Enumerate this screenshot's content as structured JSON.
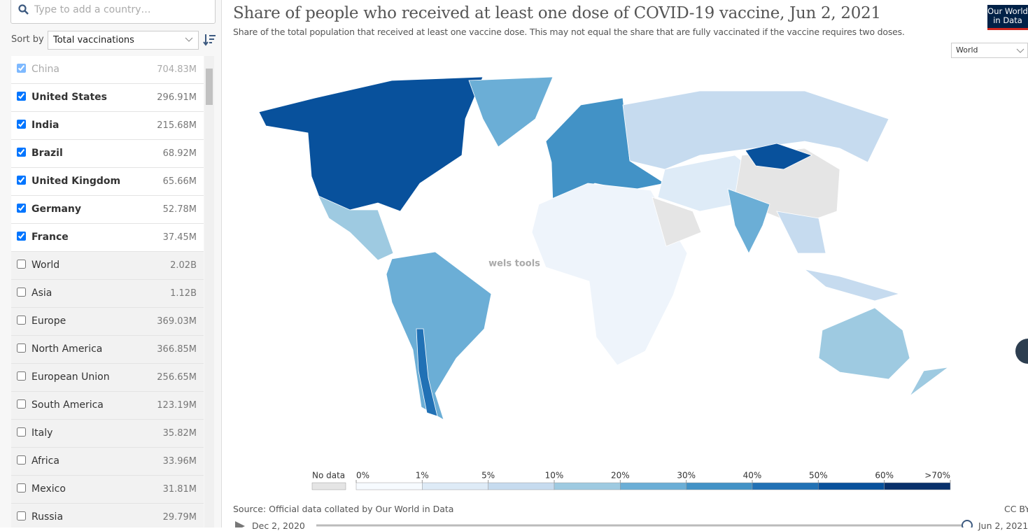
{
  "search": {
    "placeholder": "Type to add a country…"
  },
  "sort": {
    "label": "Sort by",
    "value": "Total vaccinations"
  },
  "list": [
    {
      "name": "China",
      "value": "704.83M",
      "checked": true,
      "disabled": true
    },
    {
      "name": "United States",
      "value": "296.91M",
      "checked": true
    },
    {
      "name": "India",
      "value": "215.68M",
      "checked": true
    },
    {
      "name": "Brazil",
      "value": "68.92M",
      "checked": true
    },
    {
      "name": "United Kingdom",
      "value": "65.66M",
      "checked": true
    },
    {
      "name": "Germany",
      "value": "52.78M",
      "checked": true
    },
    {
      "name": "France",
      "value": "37.45M",
      "checked": true
    },
    {
      "name": "World",
      "value": "2.02B",
      "checked": false
    },
    {
      "name": "Asia",
      "value": "1.12B",
      "checked": false
    },
    {
      "name": "Europe",
      "value": "369.03M",
      "checked": false
    },
    {
      "name": "North America",
      "value": "366.85M",
      "checked": false
    },
    {
      "name": "European Union",
      "value": "256.65M",
      "checked": false
    },
    {
      "name": "South America",
      "value": "123.19M",
      "checked": false
    },
    {
      "name": "Italy",
      "value": "35.82M",
      "checked": false
    },
    {
      "name": "Africa",
      "value": "33.96M",
      "checked": false
    },
    {
      "name": "Mexico",
      "value": "31.81M",
      "checked": false
    },
    {
      "name": "Russia",
      "value": "29.79M",
      "checked": false
    }
  ],
  "header": {
    "title": "Share of people who received at least one dose of COVID-19 vaccine, Jun 2, 2021",
    "subtitle": "Share of the total population that received at least one vaccine dose. This may not equal the share that are fully vaccinated if the vaccine requires two doses."
  },
  "region_select": "World",
  "logo": [
    "Our World",
    "in Data"
  ],
  "legend": {
    "no_data": "No data",
    "labels": [
      "0%",
      "1%",
      "5%",
      "10%",
      "20%",
      "30%",
      "40%",
      "50%",
      "60%",
      ">70%"
    ],
    "colors": [
      "#f7fbff",
      "#deebf7",
      "#c6dbef",
      "#9ecae1",
      "#6baed6",
      "#4292c6",
      "#2171b5",
      "#08519c",
      "#08306b"
    ]
  },
  "watermark": "wels tools",
  "source": "Source: Official data collated by Our World in Data",
  "license": "CC BY",
  "timeline": {
    "start": "Dec 2, 2020",
    "end": "Jun 2, 2021"
  }
}
